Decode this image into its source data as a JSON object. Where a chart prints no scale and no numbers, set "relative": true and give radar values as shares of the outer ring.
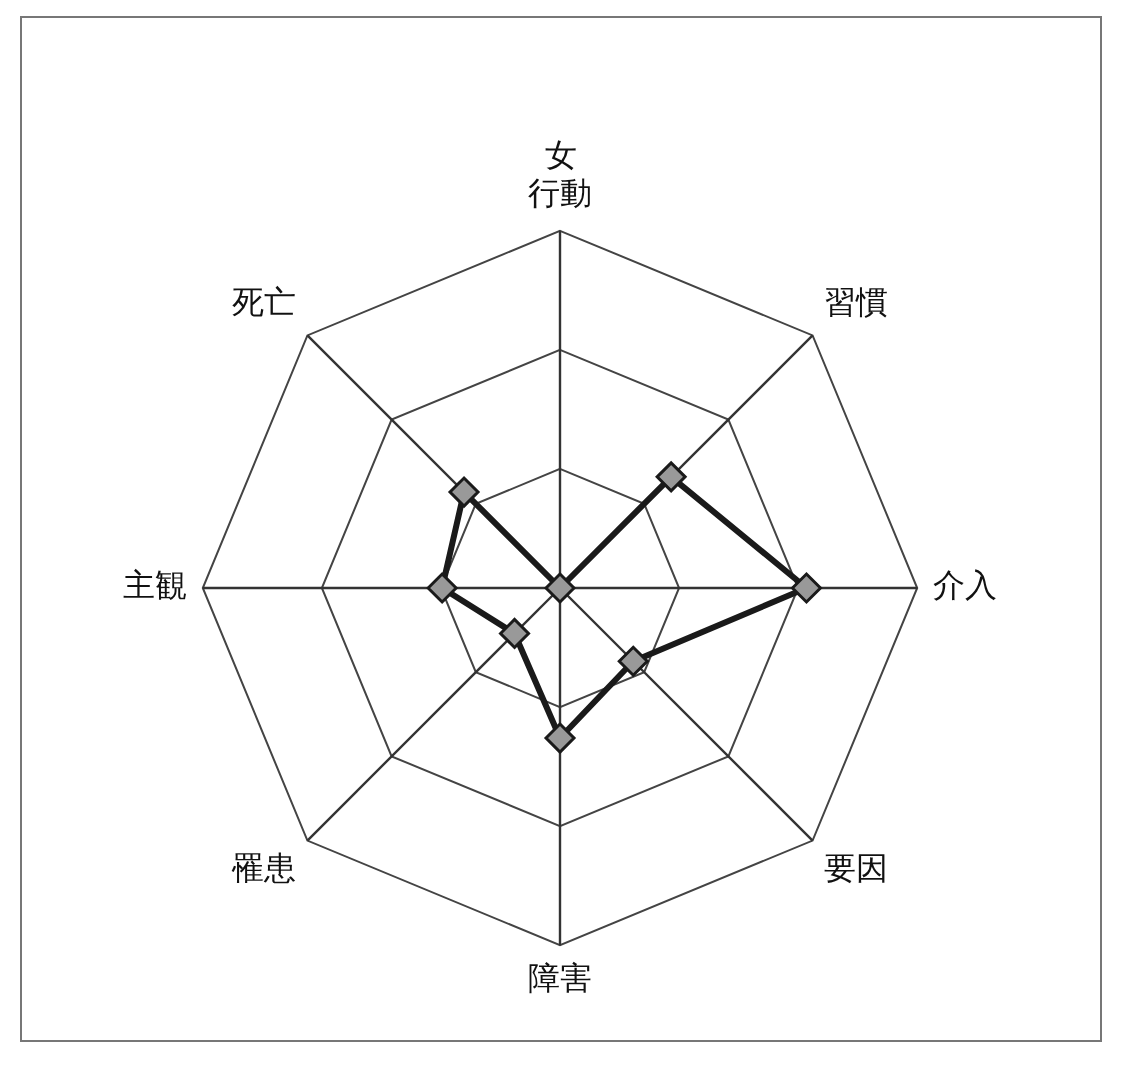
{
  "chart_data": {
    "type": "radar",
    "title": "女",
    "relative": true,
    "categories": [
      "行動",
      "習慣",
      "介入",
      "要因",
      "障害",
      "罹患",
      "主観",
      "死亡"
    ],
    "series": [
      {
        "color": "#1a1a1a",
        "values": [
          0,
          0.44,
          0.69,
          0.29,
          0.42,
          0.18,
          0.33,
          0.38
        ]
      }
    ],
    "marker": "diamond",
    "grid": true,
    "legend": false
  }
}
